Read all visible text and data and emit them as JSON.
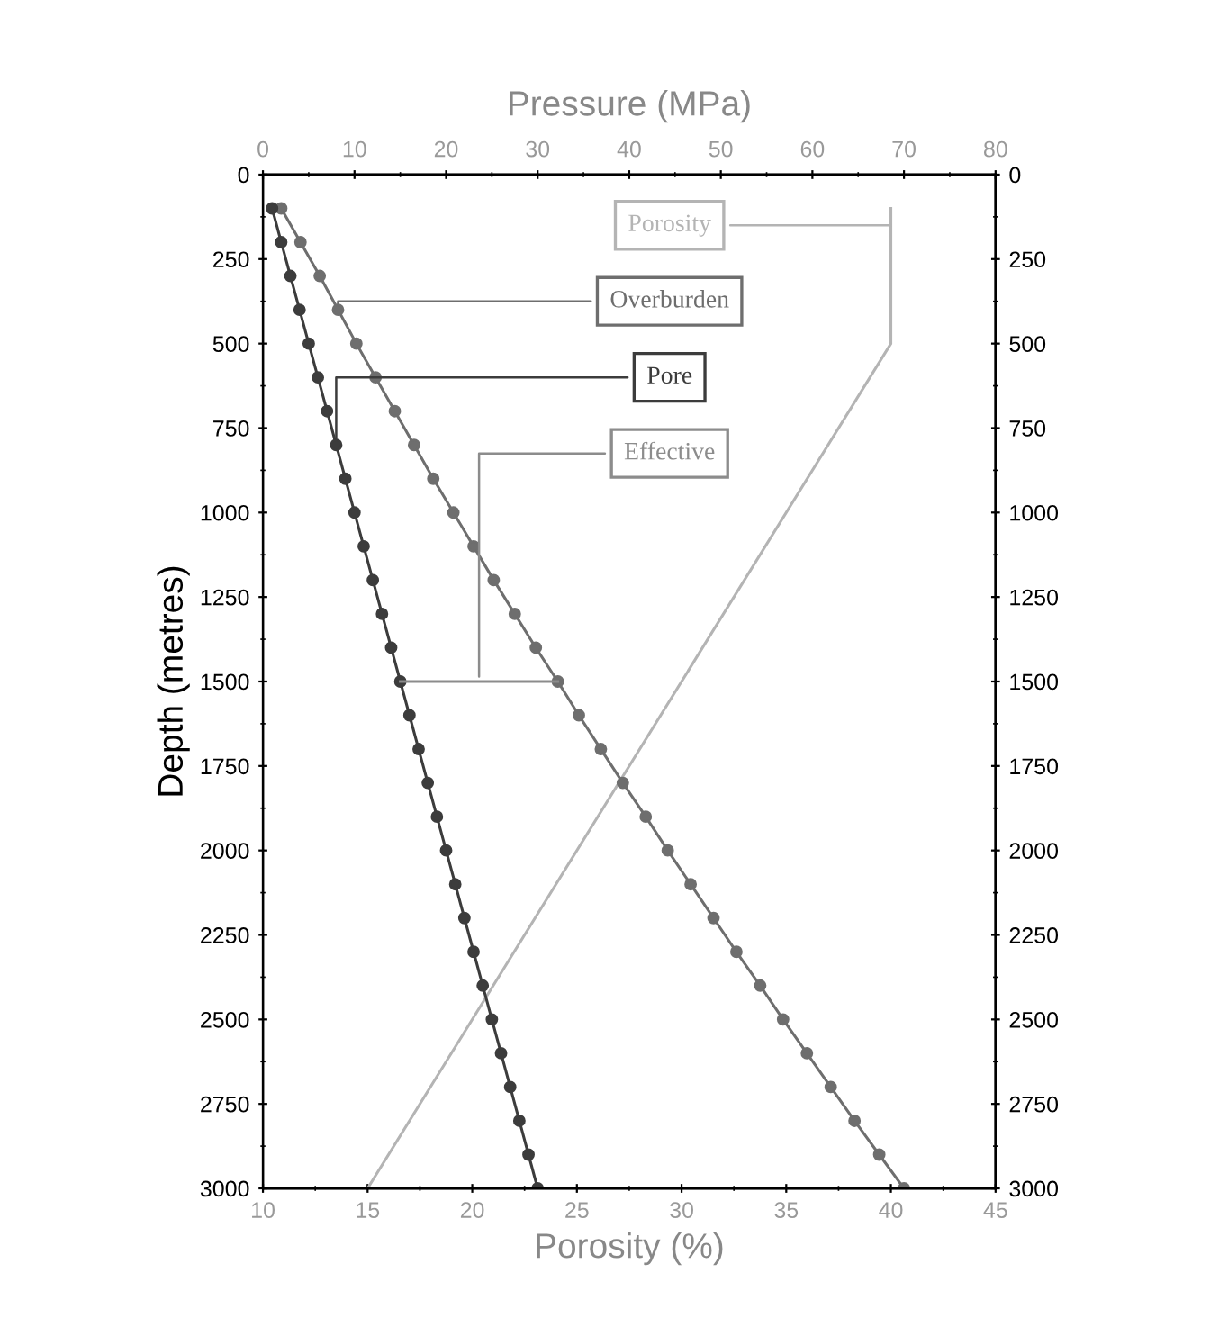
{
  "chart_data": {
    "type": "line",
    "xlabel": "Porosity (%)",
    "x2label": "Pressure (MPa)",
    "ylabel": "Depth (metres)",
    "xlim": [
      10,
      45
    ],
    "xticks": [
      10,
      15,
      20,
      25,
      30,
      35,
      40,
      45
    ],
    "x2lim": [
      0,
      80
    ],
    "x2ticks": [
      0,
      10,
      20,
      30,
      40,
      50,
      60,
      70,
      80
    ],
    "ylim": [
      3000,
      0
    ],
    "yticks": [
      0,
      250,
      500,
      750,
      1000,
      1250,
      1500,
      1750,
      2000,
      2250,
      2500,
      2750,
      3000
    ],
    "y2lim": [
      3000,
      0
    ],
    "y2ticks": [
      0,
      250,
      500,
      750,
      1000,
      1250,
      1500,
      1750,
      2000,
      2250,
      2500,
      2750,
      3000
    ],
    "grid": false,
    "legend": false,
    "series": [
      {
        "name": "Porosity",
        "color": "#b4b4b4",
        "marker": "none",
        "x": [
          40,
          40,
          15
        ],
        "values": [
          100,
          500,
          3000
        ]
      },
      {
        "name": "Overburden",
        "color": "#6e6e6e",
        "marker": "circle",
        "axis": "x2",
        "x": [
          2.0,
          4.1,
          6.2,
          8.2,
          10.2,
          12.3,
          14.4,
          16.5,
          18.6,
          20.8,
          23.0,
          25.2,
          27.5,
          29.8,
          32.2,
          34.5,
          36.9,
          39.3,
          41.8,
          44.2,
          46.7,
          49.2,
          51.7,
          54.3,
          56.8,
          59.4,
          62.0,
          64.6,
          67.3,
          70.0
        ],
        "values": [
          100,
          200,
          300,
          400,
          500,
          600,
          700,
          800,
          900,
          1000,
          1100,
          1200,
          1300,
          1400,
          1500,
          1600,
          1700,
          1800,
          1900,
          2000,
          2100,
          2200,
          2300,
          2400,
          2500,
          2600,
          2700,
          2800,
          2900,
          3000
        ]
      },
      {
        "name": "Pore",
        "color": "#3c3c3c",
        "marker": "circle",
        "axis": "x2",
        "x": [
          1,
          2,
          3,
          4,
          5,
          6,
          7,
          8,
          9,
          10,
          11,
          12,
          13,
          14,
          15,
          16,
          17,
          18,
          19,
          20,
          21,
          22,
          23,
          24,
          25,
          26,
          27,
          28,
          29,
          30
        ],
        "values": [
          100,
          200,
          300,
          400,
          500,
          600,
          700,
          800,
          900,
          1000,
          1100,
          1200,
          1300,
          1400,
          1500,
          1600,
          1700,
          1800,
          1900,
          2000,
          2100,
          2200,
          2300,
          2400,
          2500,
          2600,
          2700,
          2800,
          2900,
          3000
        ]
      },
      {
        "name": "Effective",
        "color": "#8c8c8c",
        "marker": "none",
        "axis": "x2",
        "x": [
          15,
          32.2
        ],
        "values": [
          1500,
          1500
        ]
      }
    ]
  }
}
